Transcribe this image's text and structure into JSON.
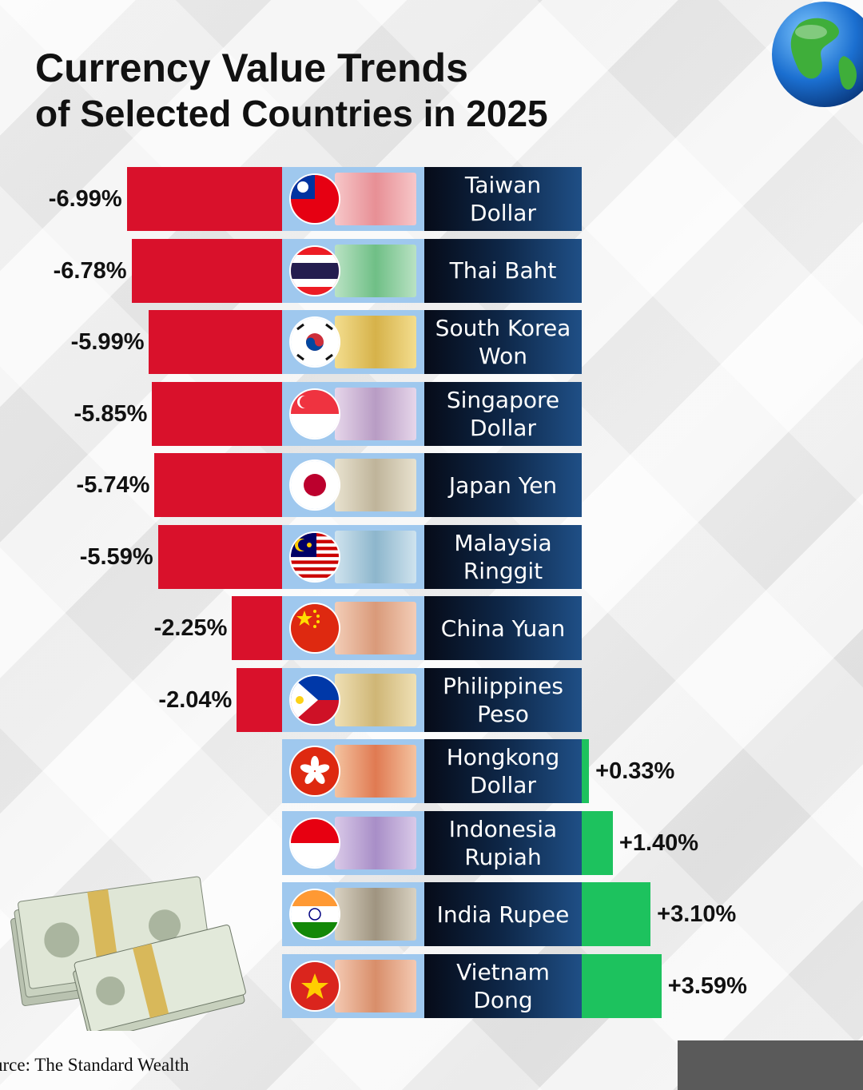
{
  "title": {
    "line1": "Currency Value Trends",
    "line2": "of Selected Countries in 2025"
  },
  "source": "urce: The Standard Wealth",
  "icons": [
    "globe-icon",
    "money-stack-icon"
  ],
  "colors": {
    "negative": "#d9112b",
    "positive": "#1dc25e",
    "name_bg_dark": "#060b18",
    "name_bg_light": "#1f4f86",
    "flag_cell_bg": "#9fc8ee"
  },
  "chart_data": {
    "type": "bar",
    "orientation": "horizontal",
    "categories": [
      "Taiwan Dollar",
      "Thai Baht",
      "South Korea\nWon",
      "Singapore\nDollar",
      "Japan Yen",
      "Malaysia\nRinggit",
      "China Yuan",
      "Philippines\nPeso",
      "Hongkong\nDollar",
      "Indonesia\nRupiah",
      "India Rupee",
      "Vietnam\nDong"
    ],
    "values": [
      -6.99,
      -6.78,
      -5.99,
      -5.85,
      -5.74,
      -5.59,
      -2.25,
      -2.04,
      0.33,
      1.4,
      3.1,
      3.59
    ],
    "labels": [
      "-6.99%",
      "-6.78%",
      "-5.99%",
      "-5.85%",
      "-5.74%",
      "-5.59%",
      "-2.25%",
      "-2.04%",
      "+0.33%",
      "+1.40%",
      "+3.10%",
      "+3.59%"
    ],
    "flags": [
      "taiwan",
      "thailand",
      "south-korea",
      "singapore",
      "japan",
      "malaysia",
      "china",
      "philippines",
      "hongkong",
      "indonesia",
      "india",
      "vietnam"
    ],
    "title": "Currency Value Trends of Selected Countries in 2025",
    "unit": "%",
    "grid": false,
    "legend": "none"
  }
}
